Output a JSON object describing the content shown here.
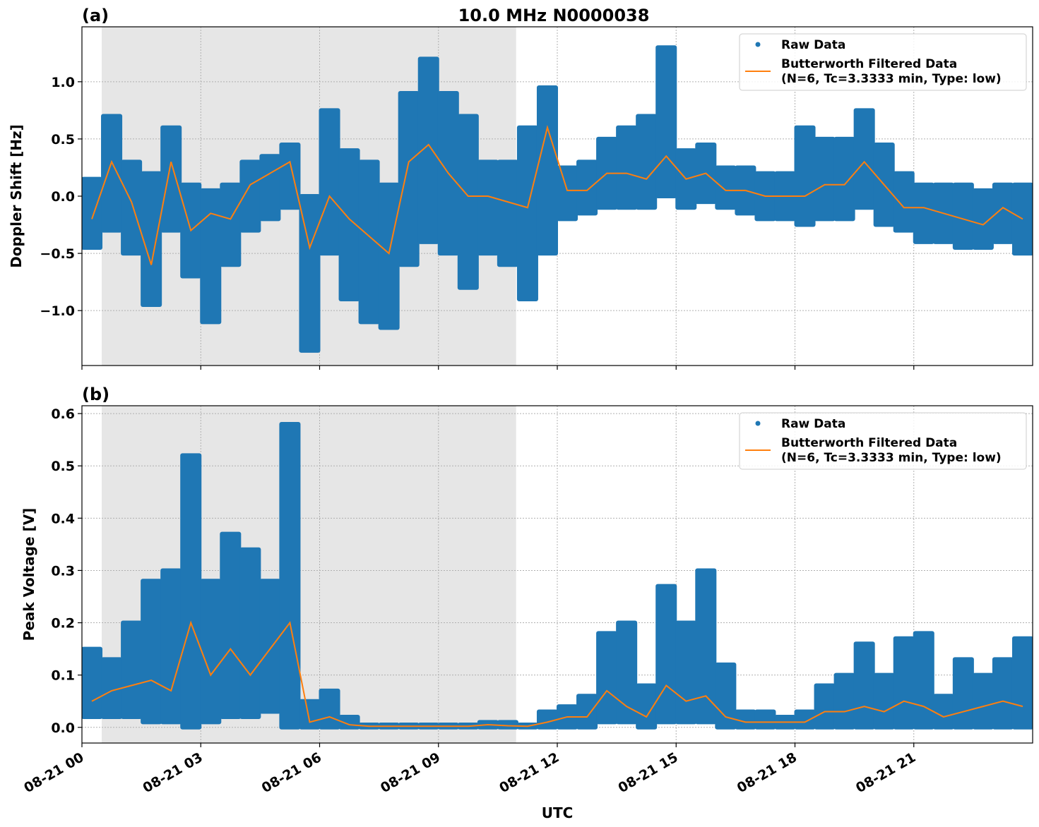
{
  "figure_title": "10.0 MHz N0000038",
  "chart_data": [
    {
      "panel_label": "(a)",
      "type": "scatter+line",
      "ylabel": "Doppler Shift [Hz]",
      "xlabel": "",
      "ylim": [
        -1.48,
        1.48
      ],
      "yticks": [
        -1.0,
        -0.5,
        0.0,
        0.5,
        1.0
      ],
      "ytick_labels": [
        "−1.0",
        "−0.5",
        "0.0",
        "0.5",
        "1.0"
      ],
      "grid": true,
      "legend_position": "top-right",
      "shaded_span_hours": [
        0.5,
        10.96
      ],
      "shade_color": "#e6e6e6",
      "x_hours": [
        0,
        0.5,
        1,
        1.5,
        2,
        2.5,
        3,
        3.5,
        4,
        4.5,
        5,
        5.5,
        6,
        6.5,
        7,
        7.5,
        8,
        8.5,
        9,
        9.5,
        10,
        10.5,
        11,
        11.5,
        12,
        12.5,
        13,
        13.5,
        14,
        14.5,
        15,
        15.5,
        16,
        16.5,
        17,
        17.5,
        18,
        18.5,
        19,
        19.5,
        20,
        20.5,
        21,
        21.5,
        22,
        22.5,
        23,
        23.5
      ],
      "series": [
        {
          "name": "Raw Data",
          "color": "#1f77b4",
          "low": [
            -0.45,
            -0.3,
            -0.5,
            -0.95,
            -0.3,
            -0.7,
            -1.1,
            -0.6,
            -0.3,
            -0.2,
            -0.1,
            -1.35,
            -0.5,
            -0.9,
            -1.1,
            -1.15,
            -0.6,
            -0.4,
            -0.5,
            -0.8,
            -0.5,
            -0.6,
            -0.9,
            -0.5,
            -0.2,
            -0.15,
            -0.1,
            -0.1,
            -0.1,
            0.0,
            -0.1,
            -0.05,
            -0.1,
            -0.15,
            -0.2,
            -0.2,
            -0.25,
            -0.2,
            -0.2,
            -0.1,
            -0.25,
            -0.3,
            -0.4,
            -0.4,
            -0.45,
            -0.45,
            -0.4,
            -0.5
          ],
          "high": [
            0.15,
            0.7,
            0.3,
            0.2,
            0.6,
            0.1,
            0.05,
            0.1,
            0.3,
            0.35,
            0.45,
            0.0,
            0.75,
            0.4,
            0.3,
            0.1,
            0.9,
            1.2,
            0.9,
            0.7,
            0.3,
            0.3,
            0.6,
            0.95,
            0.25,
            0.3,
            0.5,
            0.6,
            0.7,
            1.3,
            0.4,
            0.45,
            0.25,
            0.25,
            0.2,
            0.2,
            0.6,
            0.5,
            0.5,
            0.75,
            0.45,
            0.2,
            0.1,
            0.1,
            0.1,
            0.05,
            0.1,
            0.1
          ]
        },
        {
          "name": "Butterworth Filtered Data\n(N=6, Tc=3.3333 min, Type: low)",
          "color": "#ff7f0e",
          "values": [
            -0.2,
            0.3,
            -0.05,
            -0.6,
            0.3,
            -0.3,
            -0.15,
            -0.2,
            0.1,
            0.2,
            0.3,
            -0.45,
            0.0,
            -0.2,
            -0.35,
            -0.5,
            0.3,
            0.45,
            0.2,
            0.0,
            0.0,
            -0.05,
            -0.1,
            0.6,
            0.05,
            0.05,
            0.2,
            0.2,
            0.15,
            0.35,
            0.15,
            0.2,
            0.05,
            0.05,
            0.0,
            0.0,
            0.0,
            0.1,
            0.1,
            0.3,
            0.1,
            -0.1,
            -0.1,
            -0.15,
            -0.2,
            -0.25,
            -0.1,
            -0.2
          ]
        }
      ]
    },
    {
      "panel_label": "(b)",
      "type": "scatter+line",
      "ylabel": "Peak Voltage [V]",
      "xlabel": "UTC",
      "ylim": [
        -0.03,
        0.615
      ],
      "yticks": [
        0.0,
        0.1,
        0.2,
        0.3,
        0.4,
        0.5,
        0.6
      ],
      "ytick_labels": [
        "0.0",
        "0.1",
        "0.2",
        "0.3",
        "0.4",
        "0.5",
        "0.6"
      ],
      "xlim_hours": [
        0,
        24
      ],
      "xticks_hours": [
        0,
        3,
        6,
        9,
        12,
        15,
        18,
        21
      ],
      "xtick_labels": [
        "08-21 00",
        "08-21 03",
        "08-21 06",
        "08-21 09",
        "08-21 12",
        "08-21 15",
        "08-21 18",
        "08-21 21"
      ],
      "grid": true,
      "legend_position": "top-right",
      "shaded_span_hours": [
        0.5,
        10.96
      ],
      "shade_color": "#e6e6e6",
      "x_hours": [
        0,
        0.5,
        1,
        1.5,
        2,
        2.5,
        3,
        3.5,
        4,
        4.5,
        5,
        5.5,
        6,
        6.5,
        7,
        7.5,
        8,
        8.5,
        9,
        9.5,
        10,
        10.5,
        11,
        11.5,
        12,
        12.5,
        13,
        13.5,
        14,
        14.5,
        15,
        15.5,
        16,
        16.5,
        17,
        17.5,
        18,
        18.5,
        19,
        19.5,
        20,
        20.5,
        21,
        21.5,
        22,
        22.5,
        23,
        23.5
      ],
      "series": [
        {
          "name": "Raw Data",
          "color": "#1f77b4",
          "low": [
            0.02,
            0.02,
            0.02,
            0.01,
            0.01,
            0.0,
            0.01,
            0.02,
            0.02,
            0.03,
            0.0,
            0.0,
            0.0,
            0.0,
            0.0,
            0.0,
            0.0,
            0.0,
            0.0,
            0.0,
            0.0,
            0.0,
            0.0,
            0.0,
            0.0,
            0.0,
            0.01,
            0.01,
            0.0,
            0.01,
            0.01,
            0.01,
            0.0,
            0.0,
            0.0,
            0.0,
            0.0,
            0.0,
            0.0,
            0.0,
            0.0,
            0.0,
            0.0,
            0.0,
            0.0,
            0.0,
            0.0,
            0.0
          ],
          "high": [
            0.15,
            0.13,
            0.2,
            0.28,
            0.3,
            0.52,
            0.28,
            0.37,
            0.34,
            0.28,
            0.58,
            0.05,
            0.07,
            0.02,
            0.005,
            0.005,
            0.005,
            0.005,
            0.005,
            0.005,
            0.01,
            0.01,
            0.005,
            0.03,
            0.04,
            0.06,
            0.18,
            0.2,
            0.08,
            0.27,
            0.2,
            0.3,
            0.12,
            0.03,
            0.03,
            0.02,
            0.03,
            0.08,
            0.1,
            0.16,
            0.1,
            0.17,
            0.18,
            0.06,
            0.13,
            0.1,
            0.13,
            0.17
          ]
        },
        {
          "name": "Butterworth Filtered Data\n(N=6, Tc=3.3333 min, Type: low)",
          "color": "#ff7f0e",
          "values": [
            0.05,
            0.07,
            0.08,
            0.09,
            0.07,
            0.2,
            0.1,
            0.15,
            0.1,
            0.15,
            0.2,
            0.01,
            0.02,
            0.005,
            0.002,
            0.002,
            0.002,
            0.002,
            0.002,
            0.002,
            0.005,
            0.003,
            0.002,
            0.01,
            0.02,
            0.02,
            0.07,
            0.04,
            0.02,
            0.08,
            0.05,
            0.06,
            0.02,
            0.01,
            0.01,
            0.01,
            0.01,
            0.03,
            0.03,
            0.04,
            0.03,
            0.05,
            0.04,
            0.02,
            0.03,
            0.04,
            0.05,
            0.04
          ]
        }
      ]
    }
  ],
  "legend": {
    "raw_label": "Raw Data",
    "filtered_line1": "Butterworth Filtered Data",
    "filtered_line2": "(N=6, Tc=3.3333 min, Type: low)"
  }
}
